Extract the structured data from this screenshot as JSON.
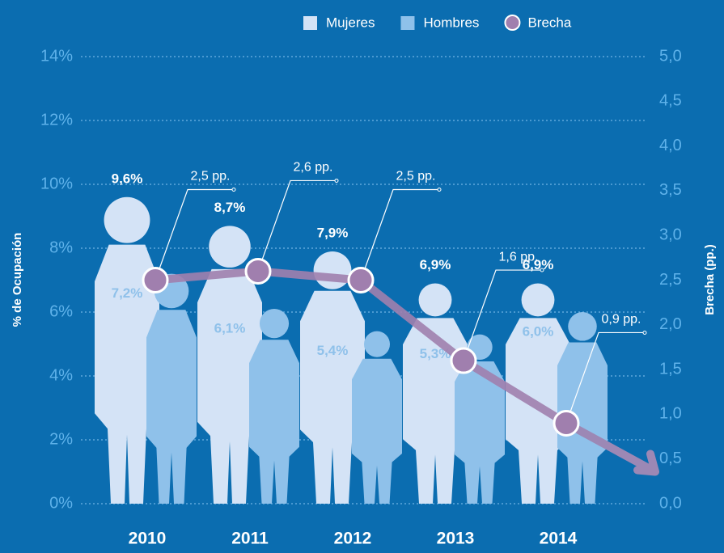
{
  "chart_data": {
    "type": "bar",
    "categories": [
      "2010",
      "2011",
      "2012",
      "2013",
      "2014"
    ],
    "series": [
      {
        "name": "Mujeres",
        "color": "#d4e3f6",
        "values": [
          9.6,
          8.7,
          7.9,
          6.9,
          6.9
        ],
        "value_labels": [
          "9,6%",
          "8,7%",
          "7,9%",
          "6,9%",
          "6,9%"
        ]
      },
      {
        "name": "Hombres",
        "color": "#8fc1ea",
        "values": [
          7.2,
          6.1,
          5.4,
          5.3,
          6.0
        ],
        "value_labels": [
          "7,2%",
          "6,1%",
          "5,4%",
          "5,3%",
          "6,0%"
        ]
      },
      {
        "name": "Brecha",
        "type": "line",
        "axis": "y2",
        "color": "#a07fae",
        "values": [
          2.5,
          2.6,
          2.5,
          1.6,
          0.9
        ],
        "value_labels": [
          "2,5 pp.",
          "2,6 pp.",
          "2,5 pp.",
          "1,6 pp.",
          "0,9 pp."
        ]
      }
    ],
    "ylabel": "% de Ocupación",
    "y2label": "Brecha (pp.)",
    "ylim": [
      0,
      14
    ],
    "yticks": [
      {
        "value": 0,
        "label": "0%"
      },
      {
        "value": 2,
        "label": "2%"
      },
      {
        "value": 4,
        "label": "4%"
      },
      {
        "value": 6,
        "label": "6%"
      },
      {
        "value": 8,
        "label": "8%"
      },
      {
        "value": 10,
        "label": "10%"
      },
      {
        "value": 12,
        "label": "12%"
      },
      {
        "value": 14,
        "label": "14%"
      }
    ],
    "y2lim": [
      0,
      5
    ],
    "y2ticks": [
      {
        "value": 0,
        "label": "0,0"
      },
      {
        "value": 0.5,
        "label": "0,5"
      },
      {
        "value": 1,
        "label": "1,0"
      },
      {
        "value": 1.5,
        "label": "1,5"
      },
      {
        "value": 2,
        "label": "2,0"
      },
      {
        "value": 2.5,
        "label": "2,5"
      },
      {
        "value": 3,
        "label": "3,0"
      },
      {
        "value": 3.5,
        "label": "3,5"
      },
      {
        "value": 4,
        "label": "4,0"
      },
      {
        "value": 4.5,
        "label": "4,5"
      },
      {
        "value": 5,
        "label": "5,0"
      }
    ],
    "grid": true,
    "legend": "top"
  }
}
